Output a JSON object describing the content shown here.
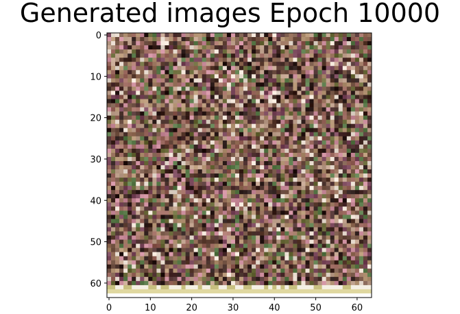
{
  "figure": {
    "title": "Generated images Epoch 10000"
  },
  "image": {
    "grid_size": 64,
    "description_colors": {
      "dark": "#2a1a18",
      "mid_brown": "#7a5a4a",
      "tan": "#b09070",
      "pink": "#c88a9a",
      "olive": "#6a6a3a",
      "light": "#e8dcd0",
      "green": "#5a7a4a"
    },
    "bottom_rows_colors": [
      "#f4f0e4",
      "#e0d8a0",
      "#ffffff"
    ]
  },
  "axes": {
    "x_ticks": [
      0,
      10,
      20,
      30,
      40,
      50,
      60
    ],
    "y_ticks": [
      0,
      10,
      20,
      30,
      40,
      50,
      60
    ],
    "x_range": [
      -0.5,
      63.5
    ],
    "y_range": [
      -0.5,
      63.5
    ]
  },
  "axis_labels": {
    "x": [
      "0",
      "10",
      "20",
      "30",
      "40",
      "50",
      "60"
    ],
    "y": [
      "0",
      "10",
      "20",
      "30",
      "40",
      "50",
      "60"
    ]
  }
}
